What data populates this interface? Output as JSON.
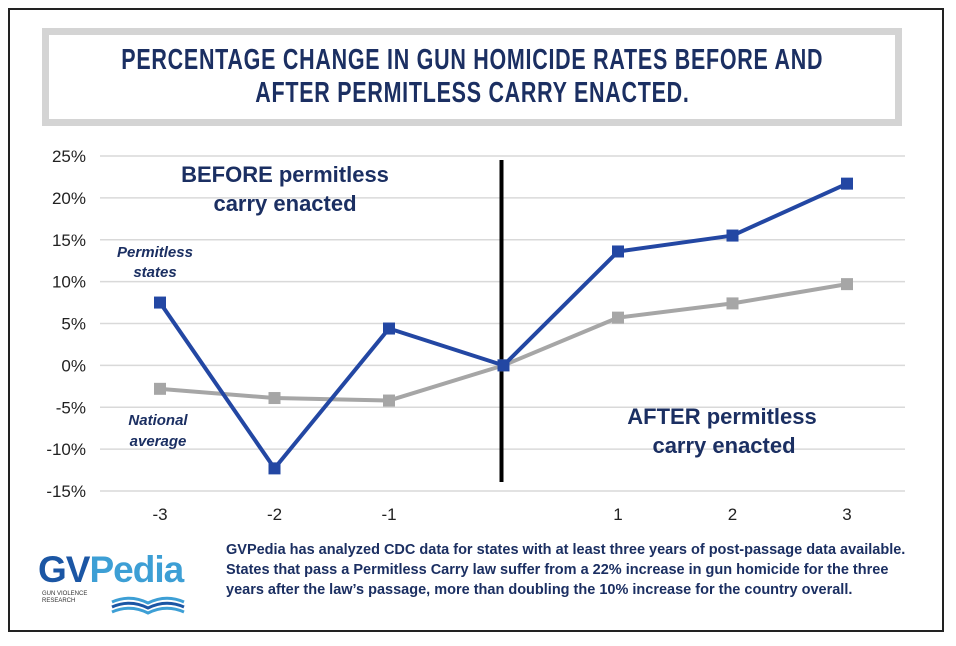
{
  "title": {
    "line1": "PERCENTAGE CHANGE IN GUN HOMICIDE RATES BEFORE AND",
    "line2": "AFTER PERMITLESS CARRY ENACTED."
  },
  "annotations": {
    "before_line1": "BEFORE permitless",
    "before_line2": "carry enacted",
    "after_line1": "AFTER permitless",
    "after_line2": "carry enacted",
    "permitless_line1": "Permitless",
    "permitless_line2": "states",
    "national_line1": "National",
    "national_line2": "average"
  },
  "footer_text": "GVPedia has analyzed CDC data for states with at least three years of post-passage data available. States that pass a Permitless Carry law suffer from a 22% increase in gun homicide for the three years after the law’s passage, more than doubling the 10% increase for the country overall.",
  "logo": {
    "gv": "GV",
    "pedia": "Pedia",
    "sub_line1": "GUN VIOLENCE",
    "sub_line2": "RESEARCH",
    "icon": "open-book-icon"
  },
  "colors": {
    "permitless": "#2347a3",
    "national": "#a6a6a6",
    "title_text": "#1b2f62",
    "divider": "#000000"
  },
  "chart_data": {
    "type": "line",
    "title": "PERCENTAGE CHANGE IN GUN HOMICIDE RATES BEFORE AND AFTER PERMITLESS CARRY ENACTED.",
    "x": [
      -3,
      -2,
      -1,
      0,
      1,
      2,
      3
    ],
    "x_tick_labels": [
      "-3",
      "-2",
      "-1",
      "",
      "1",
      "2",
      "3"
    ],
    "y_tick_values": [
      25,
      20,
      15,
      10,
      5,
      0,
      -5,
      -10,
      -15
    ],
    "y_tick_labels": [
      "25%",
      "20%",
      "15%",
      "10%",
      "5%",
      "0%",
      "-5%",
      "-10%",
      "-15%"
    ],
    "ylim": [
      -15,
      25
    ],
    "grid": true,
    "vertical_marker_at_x": 0,
    "series": [
      {
        "name": "Permitless states",
        "values": [
          7.5,
          -12.3,
          4.4,
          0,
          13.6,
          15.5,
          21.7
        ]
      },
      {
        "name": "National average",
        "values": [
          -2.8,
          -3.9,
          -4.2,
          0,
          5.7,
          7.4,
          9.7
        ]
      }
    ]
  }
}
